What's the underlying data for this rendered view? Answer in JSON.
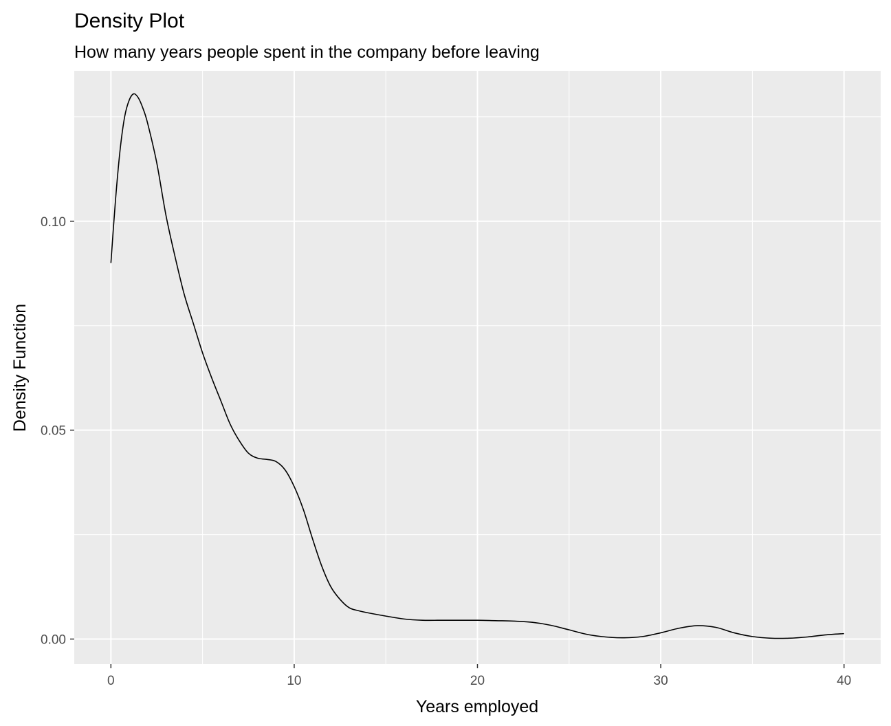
{
  "chart_data": {
    "type": "line",
    "title": "Density Plot",
    "subtitle": "How many years people spent in the company before leaving",
    "xlabel": "Years employed",
    "ylabel": "Density Function",
    "xlim": [
      -2,
      42
    ],
    "ylim": [
      -0.006,
      0.136
    ],
    "x_ticks": [
      0,
      10,
      20,
      30,
      40
    ],
    "x_tick_labels": [
      "0",
      "10",
      "20",
      "30",
      "40"
    ],
    "x_minor_ticks": [
      5,
      15,
      25,
      35
    ],
    "y_ticks": [
      0.0,
      0.05,
      0.1
    ],
    "y_tick_labels": [
      "0.00",
      "0.05",
      "0.10"
    ],
    "y_minor_ticks": [
      0.025,
      0.075,
      0.125
    ],
    "grid": true,
    "colors": {
      "panel": "#ebebeb",
      "grid": "#ffffff",
      "line": "#000000"
    },
    "series": [
      {
        "x": [
          0,
          0.25,
          0.5,
          0.75,
          1,
          1.25,
          1.5,
          1.75,
          2,
          2.5,
          3,
          3.5,
          4,
          4.5,
          5,
          5.5,
          6,
          6.5,
          7,
          7.5,
          8,
          8.5,
          9,
          9.5,
          10,
          10.5,
          11,
          11.5,
          12,
          12.5,
          13,
          13.5,
          14,
          15,
          16,
          17,
          18,
          19,
          20,
          21,
          22,
          23,
          24,
          25,
          26,
          27,
          28,
          29,
          30,
          31,
          32,
          33,
          34,
          35,
          36,
          37,
          38,
          39,
          40
        ],
        "values": [
          0.09,
          0.105,
          0.117,
          0.125,
          0.129,
          0.1305,
          0.1295,
          0.127,
          0.1235,
          0.114,
          0.1015,
          0.0915,
          0.0825,
          0.0755,
          0.0685,
          0.0625,
          0.057,
          0.0515,
          0.0475,
          0.0445,
          0.0433,
          0.043,
          0.0425,
          0.0405,
          0.0365,
          0.031,
          0.024,
          0.0175,
          0.0125,
          0.0095,
          0.0075,
          0.0068,
          0.0063,
          0.0055,
          0.0048,
          0.0045,
          0.0045,
          0.0045,
          0.0045,
          0.0044,
          0.0043,
          0.004,
          0.0033,
          0.0022,
          0.0011,
          0.0005,
          0.0003,
          0.0006,
          0.0015,
          0.0026,
          0.0032,
          0.0028,
          0.0015,
          0.0006,
          0.0002,
          0.0002,
          0.0005,
          0.001,
          0.0013
        ]
      }
    ]
  }
}
